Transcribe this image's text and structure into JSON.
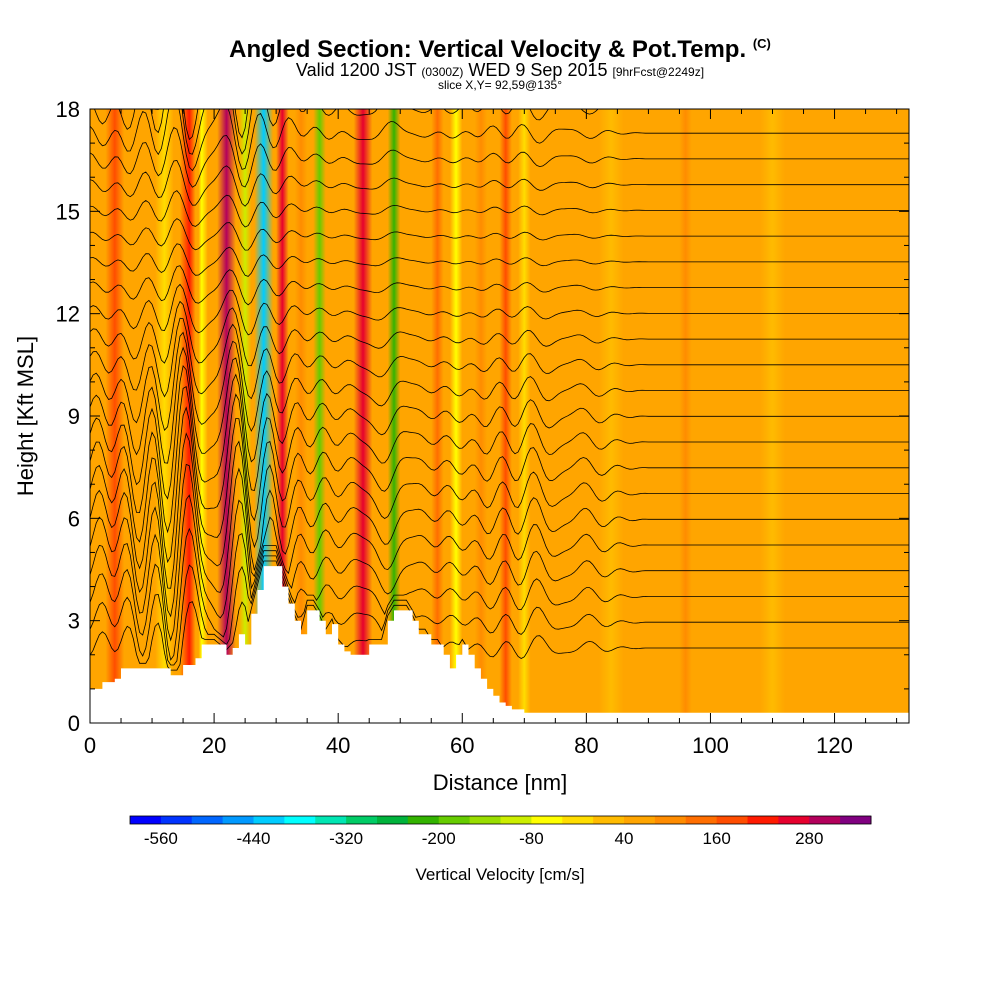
{
  "header": {
    "title": "Angled Section: Vertical Velocity & Pot.Temp.",
    "title_unit": "(C)",
    "valid_prefix": "Valid 1200 JST",
    "valid_utc": "(0300Z)",
    "valid_date": "WED 9 Sep 2015",
    "forecast_tag": "[9hrFcst@2249z]",
    "slice": "slice X,Y= 92,59@135°"
  },
  "chart_data": {
    "type": "heatmap",
    "xlabel": "Distance [nm]",
    "ylabel": "Height [Kft MSL]",
    "xlim": [
      0,
      132
    ],
    "ylim": [
      0,
      18
    ],
    "xticks": [
      0,
      20,
      40,
      60,
      80,
      100,
      120
    ],
    "yticks": [
      0,
      3,
      6,
      9,
      12,
      15,
      18
    ],
    "terrain": {
      "x": [
        0,
        1,
        2,
        4,
        5,
        8,
        9,
        12,
        13,
        14,
        15,
        17,
        18,
        19,
        20,
        22,
        23,
        24,
        25,
        26,
        27,
        28,
        29,
        30,
        31,
        32,
        33,
        34,
        35,
        36,
        37,
        38,
        39,
        40,
        41,
        42,
        43,
        44,
        45,
        46,
        47,
        48,
        49,
        50,
        51,
        52,
        53,
        54,
        55,
        56,
        57,
        58,
        59,
        60,
        61,
        62,
        63,
        64,
        65,
        66,
        67,
        68,
        69,
        70,
        71,
        72,
        73,
        132
      ],
      "kft": [
        1.0,
        1.0,
        1.2,
        1.3,
        1.6,
        1.6,
        1.6,
        1.6,
        1.4,
        1.4,
        1.7,
        1.9,
        2.3,
        2.3,
        2.3,
        2.0,
        2.2,
        2.6,
        2.3,
        3.2,
        3.9,
        4.6,
        4.6,
        4.6,
        4.0,
        3.5,
        3.0,
        2.6,
        3.3,
        3.3,
        3.0,
        2.6,
        2.9,
        2.3,
        2.1,
        2.0,
        2.0,
        2.0,
        2.3,
        2.3,
        2.3,
        3.0,
        3.3,
        3.3,
        3.3,
        3.0,
        2.6,
        2.6,
        2.3,
        2.3,
        2.0,
        1.6,
        2.0,
        2.3,
        2.0,
        1.6,
        1.3,
        1.0,
        0.8,
        0.6,
        0.5,
        0.4,
        0.4,
        0.3,
        0.3,
        0.3,
        0.3,
        0.3
      ]
    },
    "velocity_bands": [
      {
        "x": 4,
        "v": 160,
        "w": 3
      },
      {
        "x": 8,
        "v": 60,
        "w": 3
      },
      {
        "x": 12,
        "v": -40,
        "w": 3
      },
      {
        "x": 16,
        "v": 220,
        "w": 3
      },
      {
        "x": 18,
        "v": -60,
        "w": 2
      },
      {
        "x": 22,
        "v": 300,
        "w": 3
      },
      {
        "x": 25,
        "v": -120,
        "w": 2
      },
      {
        "x": 28,
        "v": -420,
        "w": 3
      },
      {
        "x": 31,
        "v": 250,
        "w": 2
      },
      {
        "x": 34,
        "v": 80,
        "w": 2
      },
      {
        "x": 37,
        "v": -200,
        "w": 2
      },
      {
        "x": 40,
        "v": 40,
        "w": 2
      },
      {
        "x": 44,
        "v": 260,
        "w": 3
      },
      {
        "x": 49,
        "v": -240,
        "w": 2
      },
      {
        "x": 52,
        "v": 60,
        "w": 2
      },
      {
        "x": 56,
        "v": 140,
        "w": 2
      },
      {
        "x": 59,
        "v": -60,
        "w": 2
      },
      {
        "x": 63,
        "v": 80,
        "w": 2
      },
      {
        "x": 67,
        "v": 160,
        "w": 2
      },
      {
        "x": 70,
        "v": -40,
        "w": 2
      },
      {
        "x": 76,
        "v": 40,
        "w": 3
      },
      {
        "x": 84,
        "v": 20,
        "w": 4
      },
      {
        "x": 96,
        "v": 80,
        "w": 2
      },
      {
        "x": 110,
        "v": 30,
        "w": 4
      },
      {
        "x": 124,
        "v": 50,
        "w": 3
      }
    ],
    "isentropes": {
      "count": 23,
      "bottom_kft": 2.2,
      "top_kft": 18.8,
      "wave_amplitude_kft": [
        0.3,
        0.4,
        -0.2,
        0.6,
        -0.3,
        0.8,
        -0.5,
        0.4,
        0.2,
        -0.7,
        0.5,
        0.1
      ]
    },
    "colorbar": {
      "label": "Vertical Velocity [cm/s]",
      "min": -600,
      "max": 360,
      "step": 40,
      "tick_labels": [
        "-560",
        "-440",
        "-320",
        "-200",
        "-80",
        "40",
        "160",
        "280"
      ],
      "colors": [
        "#0000ff",
        "#0033ff",
        "#0066ff",
        "#0099ff",
        "#00ccff",
        "#00ffff",
        "#00e6b3",
        "#00cc66",
        "#00b33c",
        "#33b300",
        "#66cc00",
        "#99dd00",
        "#ccee00",
        "#ffff00",
        "#ffdd00",
        "#ffbb00",
        "#ffa500",
        "#ff8c00",
        "#ff6e00",
        "#ff4d00",
        "#ff1a00",
        "#e6002e",
        "#b3005c",
        "#800080"
      ]
    },
    "colors": {
      "background_fill": "#ffb400",
      "terrain": "#ffffff",
      "contour": "#000000"
    }
  }
}
